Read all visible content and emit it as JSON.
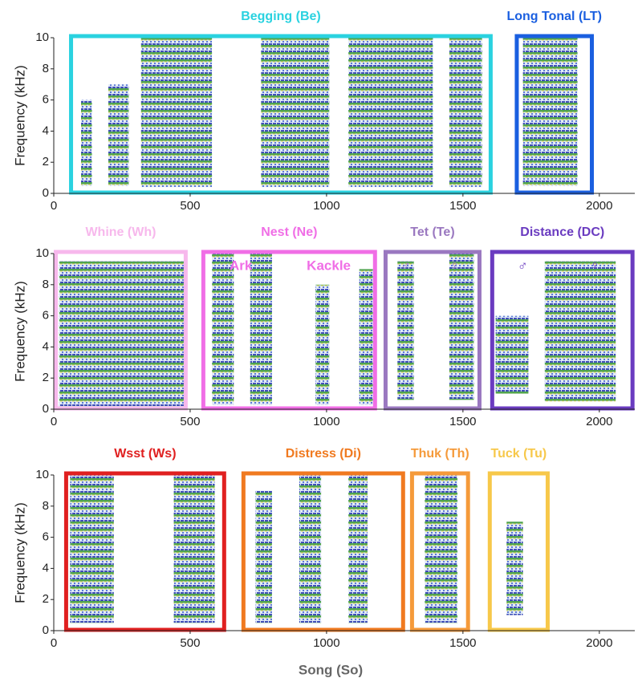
{
  "chart_data": [
    {
      "type": "spectrogram",
      "y_label": "Frequency (kHz)",
      "xlim": [
        0,
        2130
      ],
      "ylim": [
        0,
        10
      ],
      "xticks": [
        0,
        500,
        1000,
        1500,
        2000
      ],
      "yticks": [
        0,
        2,
        4,
        6,
        8,
        10
      ],
      "boxes": [
        {
          "name": "Begging (Be)",
          "color": "#2ad2e0",
          "span": [
            56,
            1609
          ],
          "syllables": [
            [
              100,
              140,
              0.5,
              6
            ],
            [
              200,
              275,
              0.5,
              7
            ],
            [
              320,
              580,
              0.4,
              10
            ],
            [
              760,
              1010,
              0.4,
              10
            ],
            [
              1080,
              1390,
              0.4,
              10
            ],
            [
              1450,
              1570,
              0.4,
              10
            ]
          ]
        },
        {
          "name": "Long Tonal (LT)",
          "color": "#1a5fe0",
          "span": [
            1690,
            1980
          ],
          "syllables": [
            [
              1720,
              1920,
              0.5,
              10
            ]
          ]
        }
      ]
    },
    {
      "type": "spectrogram",
      "y_label": "Frequency (kHz)",
      "xlim": [
        0,
        2130
      ],
      "ylim": [
        0,
        10
      ],
      "xticks": [
        0,
        500,
        1000,
        1500,
        2000
      ],
      "yticks": [
        0,
        2,
        4,
        6,
        8,
        10
      ],
      "boxes": [
        {
          "name": "Whine (Wh)",
          "color": "#f7b8ec",
          "span": [
            0,
            491
          ],
          "syllables": [
            [
              20,
              480,
              0.2,
              9.5
            ]
          ]
        },
        {
          "name": "Nest (Ne)",
          "color": "#f06ee6",
          "span": [
            541,
            1185
          ],
          "annotations": [
            "Ark",
            "Kackle"
          ],
          "syllables": [
            [
              580,
              660,
              0.3,
              10
            ],
            [
              720,
              800,
              0.3,
              10
            ],
            [
              960,
              1010,
              0.3,
              8
            ],
            [
              1120,
              1170,
              0.3,
              9
            ]
          ]
        },
        {
          "name": "Tet (Te)",
          "color": "#9a78c0",
          "span": [
            1209,
            1568
          ],
          "annotations": [
            "♂",
            "♀"
          ],
          "syllables": [
            [
              1260,
              1320,
              0.6,
              9.5
            ],
            [
              1450,
              1540,
              0.6,
              10
            ]
          ]
        },
        {
          "name": "Distance (DC)",
          "color": "#6a3bc0",
          "span": [
            1600,
            2129
          ],
          "annotations": [
            "♂",
            "♀"
          ],
          "syllables": [
            [
              1620,
              1740,
              1,
              6
            ],
            [
              1800,
              2060,
              0.5,
              9.5
            ]
          ]
        }
      ]
    },
    {
      "type": "spectrogram",
      "y_label": "Frequency (kHz)",
      "xlim": [
        0,
        2130
      ],
      "ylim": [
        0,
        10
      ],
      "xticks": [
        0,
        500,
        1000,
        1500,
        2000
      ],
      "yticks": [
        0,
        2,
        4,
        6,
        8,
        10
      ],
      "boxes": [
        {
          "name": "Wsst (Ws)",
          "color": "#e02020",
          "span": [
            38,
            632
          ],
          "syllables": [
            [
              60,
              220,
              0.5,
              10
            ],
            [
              440,
              590,
              0.5,
              10
            ]
          ]
        },
        {
          "name": "Distress (Di)",
          "color": "#f07a20",
          "span": [
            688,
            1288
          ],
          "syllables": [
            [
              740,
              800,
              0.5,
              9
            ],
            [
              900,
              980,
              0.5,
              10
            ],
            [
              1080,
              1150,
              0.5,
              10
            ]
          ]
        },
        {
          "name": "Thuk (Th)",
          "color": "#f59a3a",
          "span": [
            1306,
            1526
          ],
          "syllables": [
            [
              1360,
              1480,
              0.5,
              10
            ]
          ]
        },
        {
          "name": "Tuck (Tu)",
          "color": "#f7c84a",
          "span": [
            1591,
            1818
          ],
          "syllables": [
            [
              1660,
              1720,
              1,
              7
            ]
          ]
        }
      ]
    }
  ],
  "caption": "Song (So)"
}
